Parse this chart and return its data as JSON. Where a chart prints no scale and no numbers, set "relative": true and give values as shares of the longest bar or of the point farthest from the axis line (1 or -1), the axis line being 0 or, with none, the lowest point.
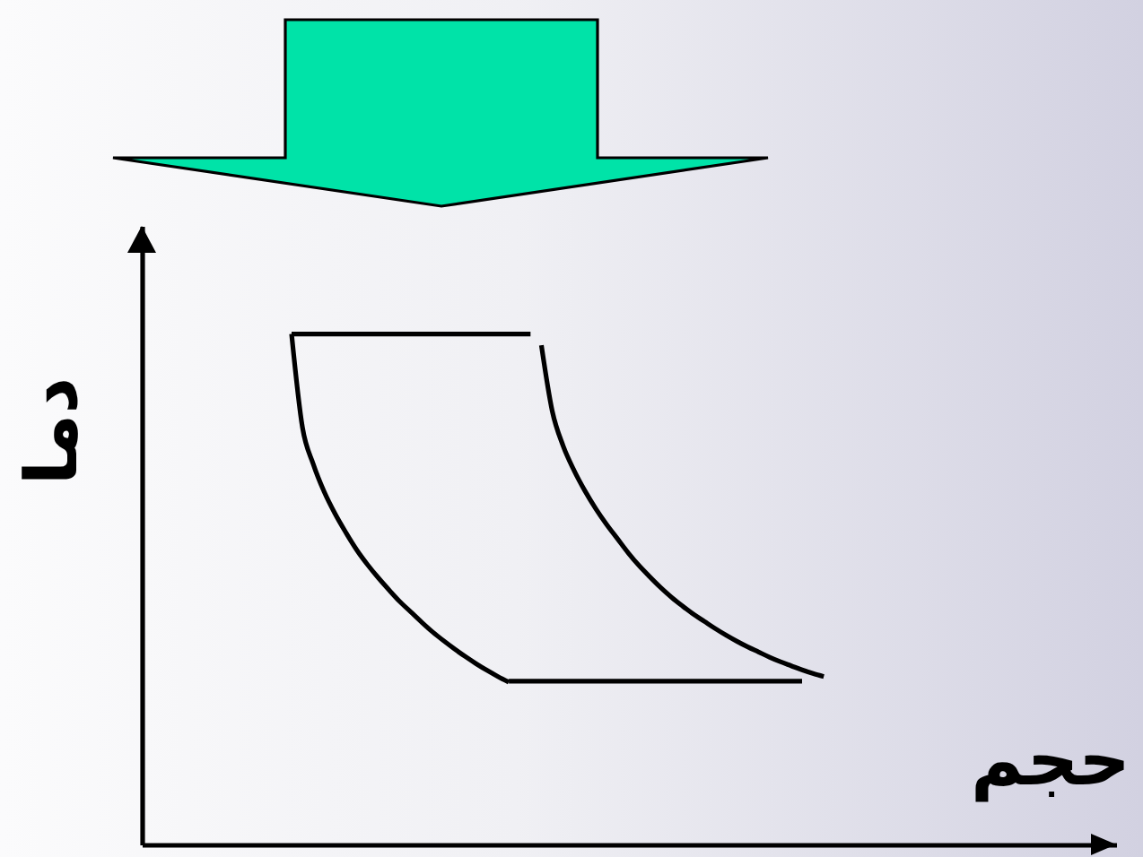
{
  "chart_data": {
    "type": "line",
    "xlabel": "حجم",
    "ylabel": "دما",
    "relative": true,
    "line_style": "solid",
    "categories": [
      null,
      null,
      null,
      null,
      null,
      null,
      null,
      null,
      null,
      null,
      null,
      null,
      null,
      null,
      null,
      null,
      null,
      null,
      null,
      null,
      null,
      null,
      null,
      null,
      null,
      null,
      null,
      null,
      null,
      null,
      null,
      null,
      null,
      null,
      null,
      null,
      null,
      null,
      null,
      null,
      null,
      null,
      null,
      null,
      null,
      null,
      null,
      null,
      null,
      null
    ],
    "series": [
      {
        "color": "#000000",
        "values": [
          1,
          1,
          1,
          1,
          1,
          1,
          1,
          1,
          1,
          1,
          1,
          1,
          1,
          1,
          1,
          1,
          1,
          1,
          1,
          1,
          1,
          1,
          1,
          null,
          null,
          null,
          null,
          null,
          null,
          null,
          null,
          null,
          null,
          null,
          null,
          null,
          null,
          null,
          null,
          null,
          null,
          null,
          null,
          null,
          null,
          null,
          null,
          null,
          null,
          null
        ]
      },
      {
        "color": "#000000",
        "values": [
          1,
          0.817,
          0.745,
          0.691,
          0.648,
          0.611,
          0.577,
          0.548,
          0.522,
          0.498,
          0.475,
          0.455,
          0.435,
          0.416,
          0.399,
          0.383,
          0.368,
          0.354,
          0.341,
          0.329,
          0.318,
          null,
          null,
          null,
          null,
          null,
          null,
          null,
          null,
          null,
          null,
          null,
          null,
          null,
          null,
          null,
          null,
          null,
          null,
          null,
          null,
          null,
          null,
          null,
          null,
          null,
          null,
          null,
          null,
          null
        ]
      },
      {
        "color": "#000000",
        "values": [
          null,
          null,
          null,
          null,
          null,
          null,
          null,
          null,
          null,
          null,
          null,
          null,
          null,
          null,
          null,
          null,
          null,
          null,
          null,
          null,
          0.32,
          0.32,
          0.32,
          0.32,
          0.32,
          0.32,
          0.32,
          0.32,
          0.32,
          0.32,
          0.32,
          0.32,
          0.32,
          0.32,
          0.32,
          0.32,
          0.32,
          0.32,
          0.32,
          0.32,
          0.32,
          0.32,
          0.32,
          0.32,
          0.32,
          0.32,
          0.32,
          0.32,
          null,
          null
        ]
      },
      {
        "color": "#000000",
        "values": [
          null,
          null,
          null,
          null,
          null,
          null,
          null,
          null,
          null,
          null,
          null,
          null,
          null,
          null,
          null,
          null,
          null,
          null,
          null,
          null,
          null,
          null,
          null,
          0.978,
          0.849,
          0.781,
          0.733,
          0.693,
          0.658,
          0.627,
          0.599,
          0.571,
          0.546,
          0.524,
          0.503,
          0.484,
          0.467,
          0.451,
          0.437,
          0.423,
          0.41,
          0.398,
          0.387,
          0.377,
          0.367,
          0.358,
          0.35,
          0.342,
          0.335,
          0.329
        ]
      }
    ]
  }
}
